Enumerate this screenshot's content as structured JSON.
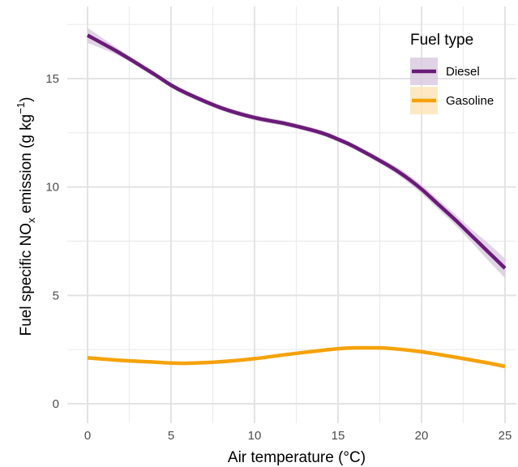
{
  "chart_data": {
    "type": "line",
    "xlabel": "Air temperature (°C)",
    "ylabel": {
      "prefix": "Fuel specific NO",
      "sub": "x",
      "middle": " emission (g kg",
      "sup": "−1",
      "suffix": ")"
    },
    "xlim": [
      0,
      25
    ],
    "ylim": [
      0,
      17
    ],
    "x_ticks": [
      0,
      5,
      10,
      15,
      20,
      25
    ],
    "y_ticks": [
      0,
      5,
      10,
      15
    ],
    "grid": true,
    "legend": {
      "title": "Fuel type",
      "position": "top-right"
    },
    "series": [
      {
        "name": "Diesel",
        "color": "#6a1b78",
        "band_color": "#d8c8de",
        "x": [
          0,
          2,
          4,
          5,
          6,
          8,
          10,
          12,
          14,
          15,
          16,
          18,
          19,
          20,
          21,
          22,
          23,
          24,
          25
        ],
        "values": [
          17.0,
          16.15,
          15.2,
          14.7,
          14.3,
          13.65,
          13.2,
          12.9,
          12.5,
          12.2,
          11.85,
          11.0,
          10.5,
          9.9,
          9.2,
          8.5,
          7.75,
          7.0,
          6.25
        ],
        "band": [
          0.35,
          0.15,
          0.12,
          0.12,
          0.12,
          0.12,
          0.12,
          0.12,
          0.12,
          0.12,
          0.12,
          0.15,
          0.18,
          0.2,
          0.22,
          0.25,
          0.3,
          0.4,
          0.45
        ]
      },
      {
        "name": "Gasoline",
        "color": "#f5a20a",
        "band_color": "#fbe3b5",
        "x": [
          0,
          2,
          4,
          5,
          6,
          8,
          10,
          12,
          14,
          15,
          16,
          17,
          18,
          20,
          22,
          24,
          25
        ],
        "values": [
          2.12,
          2.0,
          1.92,
          1.88,
          1.87,
          1.94,
          2.08,
          2.28,
          2.46,
          2.54,
          2.58,
          2.58,
          2.56,
          2.4,
          2.15,
          1.88,
          1.72
        ],
        "band": [
          0.08,
          0.06,
          0.05,
          0.05,
          0.05,
          0.05,
          0.05,
          0.05,
          0.05,
          0.05,
          0.05,
          0.05,
          0.05,
          0.05,
          0.06,
          0.07,
          0.08
        ]
      }
    ]
  }
}
